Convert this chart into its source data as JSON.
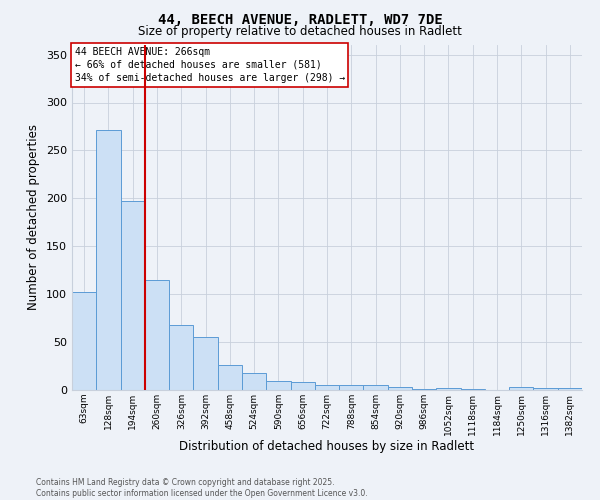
{
  "title_line1": "44, BEECH AVENUE, RADLETT, WD7 7DE",
  "title_line2": "Size of property relative to detached houses in Radlett",
  "xlabel": "Distribution of detached houses by size in Radlett",
  "ylabel": "Number of detached properties",
  "annotation_title": "44 BEECH AVENUE: 266sqm",
  "annotation_line1": "← 66% of detached houses are smaller (581)",
  "annotation_line2": "34% of semi-detached houses are larger (298) →",
  "property_bin_index": 3,
  "categories": [
    "63sqm",
    "128sqm",
    "194sqm",
    "260sqm",
    "326sqm",
    "392sqm",
    "458sqm",
    "524sqm",
    "590sqm",
    "656sqm",
    "722sqm",
    "788sqm",
    "854sqm",
    "920sqm",
    "986sqm",
    "1052sqm",
    "1118sqm",
    "1184sqm",
    "1250sqm",
    "1316sqm",
    "1382sqm"
  ],
  "values": [
    102,
    271,
    197,
    115,
    68,
    55,
    26,
    18,
    9,
    8,
    5,
    5,
    5,
    3,
    1,
    2,
    1,
    0,
    3,
    2,
    2
  ],
  "bar_color": "#cce0f5",
  "bar_edge_color": "#5b9bd5",
  "highlight_line_color": "#cc0000",
  "grid_color": "#c8d0dc",
  "background_color": "#eef2f8",
  "annotation_box_color": "#ffffff",
  "annotation_border_color": "#cc0000",
  "footer_text": "Contains HM Land Registry data © Crown copyright and database right 2025.\nContains public sector information licensed under the Open Government Licence v3.0.",
  "ylim": [
    0,
    360
  ],
  "yticks": [
    0,
    50,
    100,
    150,
    200,
    250,
    300,
    350
  ]
}
